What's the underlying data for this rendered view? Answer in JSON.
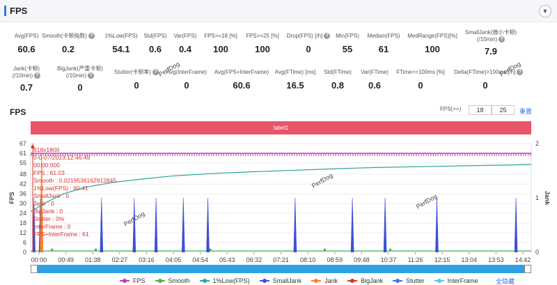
{
  "header": {
    "title": "FPS",
    "collapse_icon": "chevron-down-icon"
  },
  "metrics": [
    {
      "label": "Avg(FPS)",
      "value": "60.6",
      "help": false
    },
    {
      "label": "Smooth(卡顿指数)",
      "value": "0.2",
      "help": true
    },
    {
      "label": "1%Low(FPS)",
      "value": "54.1",
      "help": false
    },
    {
      "label": "Std(FPS)",
      "value": "0.6",
      "help": false
    },
    {
      "label": "Var(FPS)",
      "value": "0.4",
      "help": false
    },
    {
      "label": "FPS>=18 [%]",
      "value": "100",
      "help": false
    },
    {
      "label": "FPS>=25 [%]",
      "value": "100",
      "help": false
    },
    {
      "label": "Drop(FPS) [/h]",
      "value": "0",
      "help": true
    },
    {
      "label": "Min(FPS)",
      "value": "55",
      "help": false
    },
    {
      "label": "Median(FPS)",
      "value": "61",
      "help": false
    },
    {
      "label": "MedRange(FPS)[%]",
      "value": "100",
      "help": false
    },
    {
      "label": "SmallJank(微小卡顿)",
      "label2": "(/10min)",
      "value": "7.9",
      "help": true
    },
    {
      "label": "Jank(卡顿)",
      "label2": "(/10min)",
      "value": "0.7",
      "help": true
    },
    {
      "label": "BigJank(严重卡顿)",
      "label2": "(/10min)",
      "value": "0",
      "help": true
    },
    {
      "label": "Stutter(卡顿率)",
      "value": "0",
      "help": true
    },
    {
      "label": "Avg(InterFrame)",
      "value": "0",
      "help": false
    },
    {
      "label": "Avg(FPS+InterFrame)",
      "value": "60.6",
      "help": false
    },
    {
      "label": "Avg(FTime) [ms]",
      "value": "16.5",
      "help": false
    },
    {
      "label": "Std(FTime)",
      "value": "0.8",
      "help": false
    },
    {
      "label": "Var(FTime)",
      "value": "0.6",
      "help": false
    },
    {
      "label": "FTime>=100ms [%]",
      "value": "0",
      "help": false
    },
    {
      "label": "Delta(FTime)>100ms [/h]",
      "value": "0",
      "help": true
    }
  ],
  "chart_section": {
    "title": "FPS",
    "fps_threshold_label": "FPS(>=)",
    "fps_threshold_1": "18",
    "fps_threshold_2": "25",
    "reset_label": "重置",
    "band_label": "label1",
    "hide_all_label": "全隐藏",
    "watermark": "PerfDog"
  },
  "chart_data": {
    "type": "line",
    "xlabel": "",
    "ylabel": "FPS",
    "y2label": "Jank",
    "ylim": [
      0,
      67
    ],
    "y2lim": [
      0,
      2
    ],
    "y_ticks": [
      0,
      6,
      12,
      18,
      24,
      30,
      36,
      42,
      48,
      55,
      61,
      67
    ],
    "y2_ticks": [
      0,
      1,
      2
    ],
    "x_ticks": [
      "00:00",
      "00:49",
      "01:38",
      "02:27",
      "03:16",
      "04:05",
      "04:54",
      "05:43",
      "06:32",
      "07:21",
      "08:10",
      "08:59",
      "09:48",
      "10:37",
      "11:26",
      "12:15",
      "13:04",
      "13:53",
      "14:42"
    ],
    "x_range_seconds": [
      0,
      918
    ],
    "legend_position": "bottom",
    "series": [
      {
        "name": "FPS",
        "color": "#c13bb4",
        "approx_value": 61
      },
      {
        "name": "Smooth",
        "color": "#4caf50",
        "approx_value": 0.2
      },
      {
        "name": "1%Low(FPS)",
        "color": "#26a69a",
        "points": [
          [
            0,
            25
          ],
          [
            30,
            31
          ],
          [
            60,
            36
          ],
          [
            100,
            40
          ],
          [
            150,
            43
          ],
          [
            200,
            45
          ],
          [
            260,
            47
          ],
          [
            330,
            48.5
          ],
          [
            400,
            49.5
          ],
          [
            480,
            50.5
          ],
          [
            560,
            51.5
          ],
          [
            640,
            52.3
          ],
          [
            720,
            52.8
          ],
          [
            800,
            53.3
          ],
          [
            880,
            53.8
          ],
          [
            918,
            54.1
          ]
        ]
      },
      {
        "name": "SmallJank",
        "color": "#3d4fd8",
        "spikes_seconds": [
          6,
          18,
          130,
          190,
          230,
          280,
          325,
          485,
          590,
          650,
          745,
          890
        ]
      },
      {
        "name": "Jank",
        "color": "#ff7f27",
        "spikes_seconds": [
          20
        ]
      },
      {
        "name": "BigJank",
        "color": "#d0342c",
        "spikes_seconds": []
      },
      {
        "name": "Stutter",
        "color": "#3b73e0",
        "spikes_seconds": []
      },
      {
        "name": "InterFrame",
        "color": "#5bc8e8",
        "spikes_seconds": []
      }
    ],
    "tooltip": {
      "lines": [
        "818x1800",
        "0-0-07/2023:12:46:49",
        "00:00:000",
        "FPS            : 61.03",
        "Smooth         : 0.0219536162912845",
        "1%Low(FPS)     : 60.41",
        "SmallJank      : 0",
        "Jank           : 0",
        "BigJank        : 0",
        "Stutter        : 0%",
        "InterFrame     : 0",
        "FPS+InterFrame : 61"
      ]
    }
  }
}
